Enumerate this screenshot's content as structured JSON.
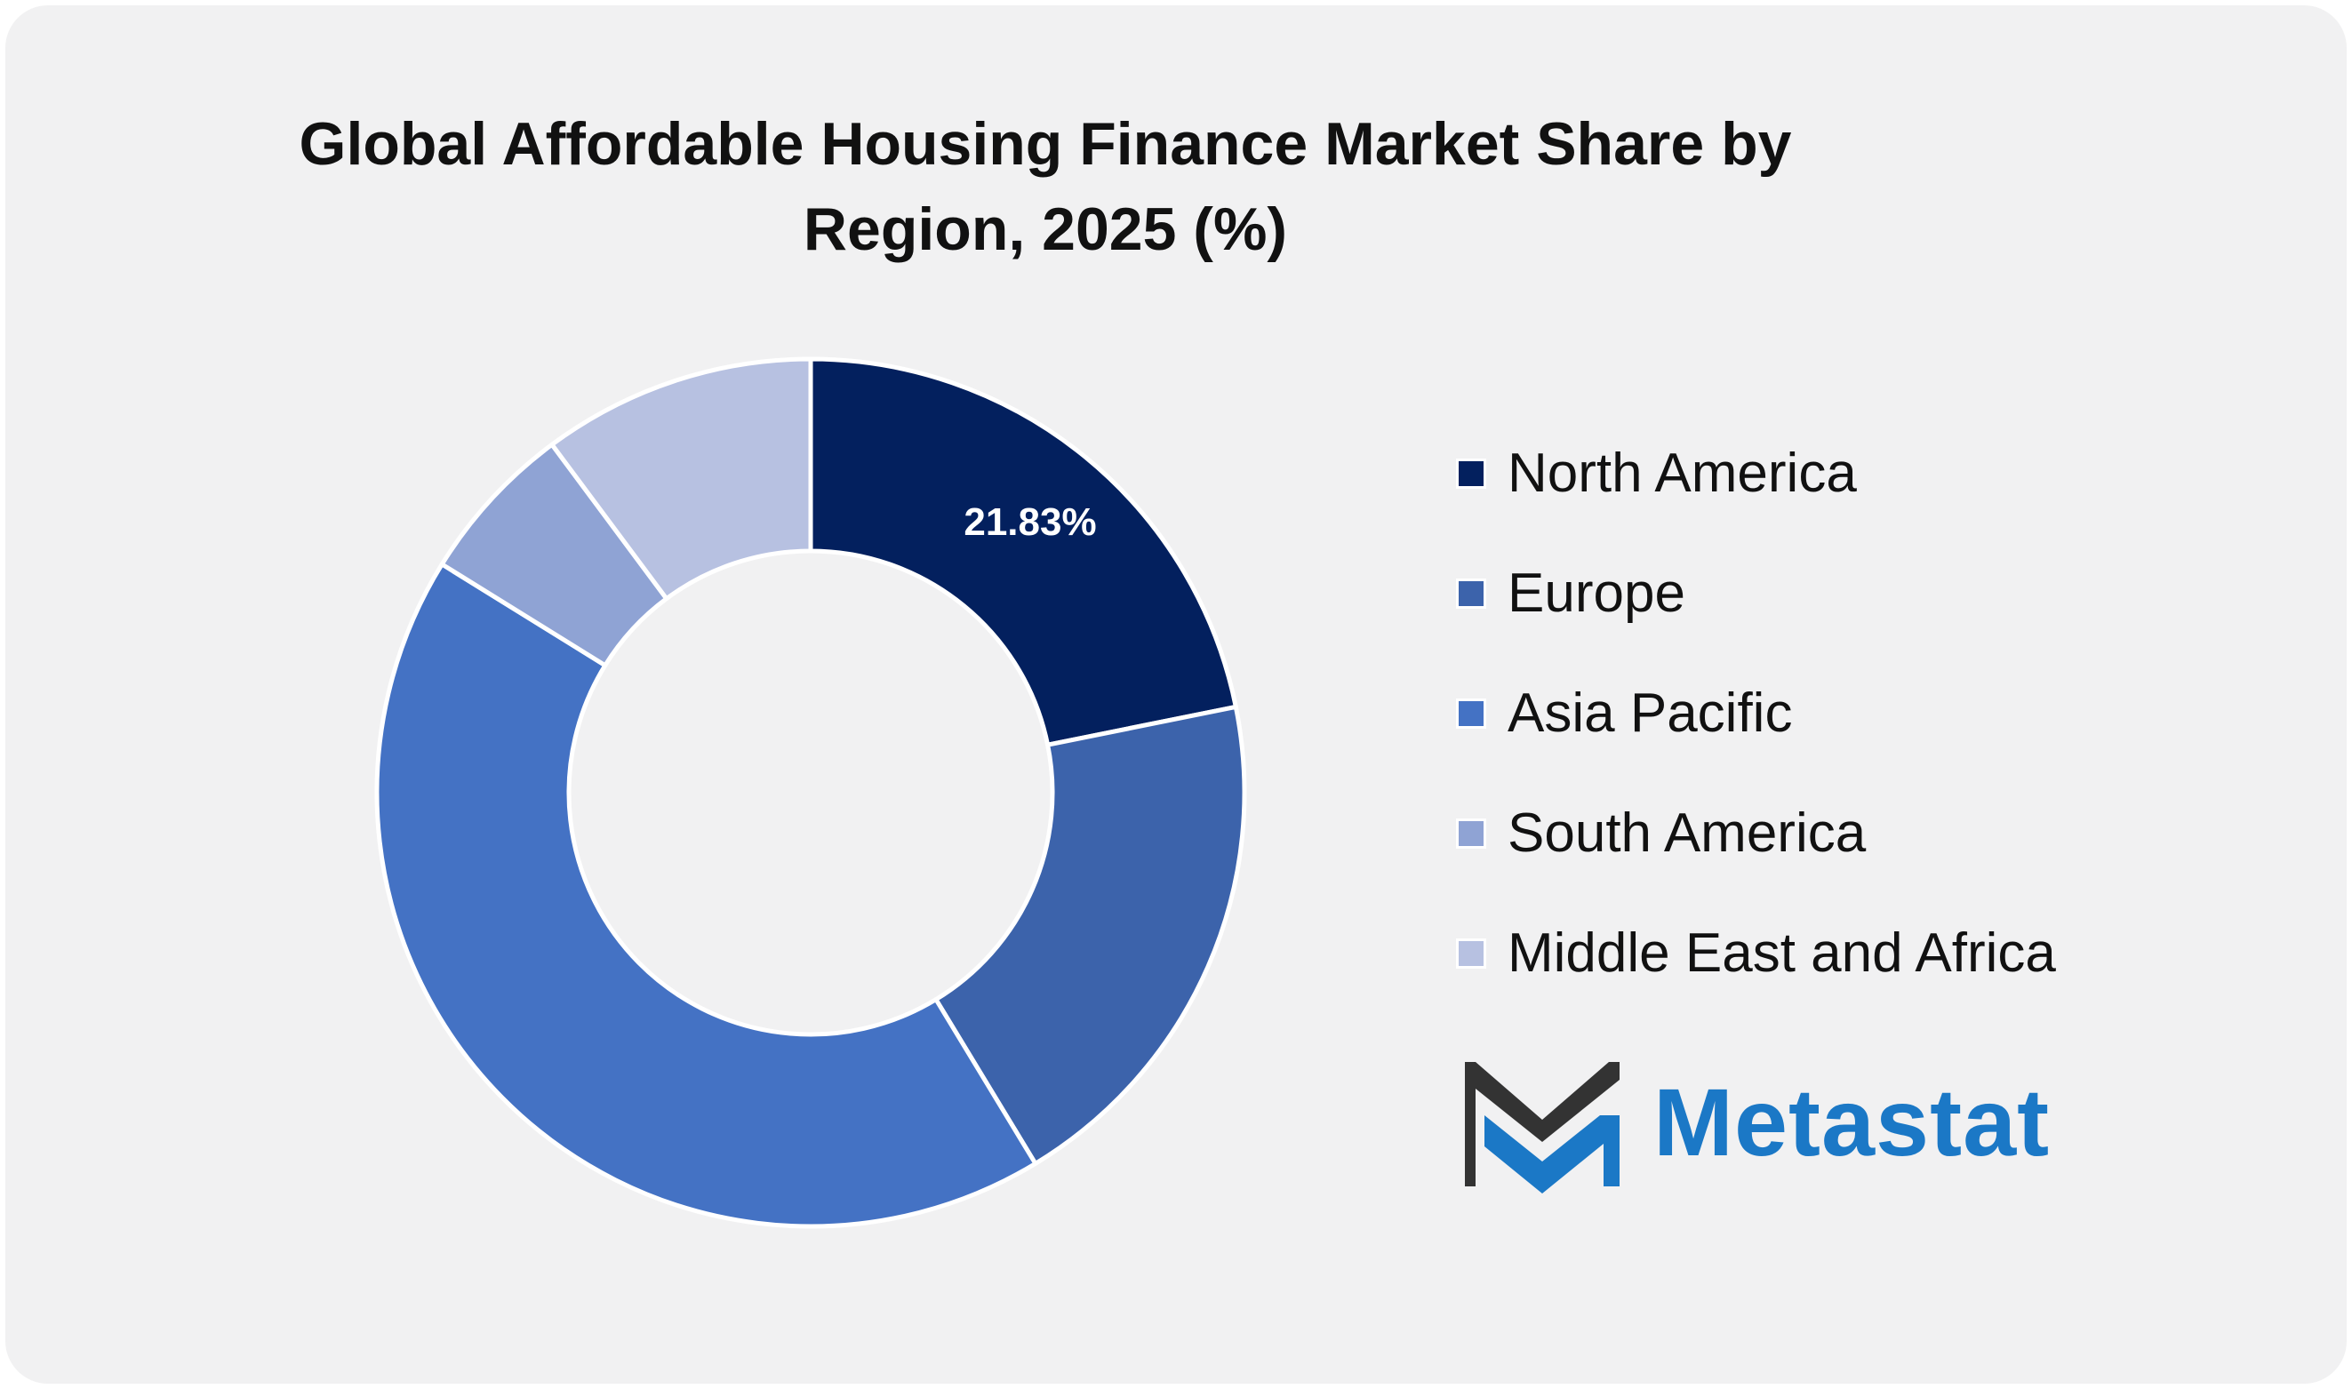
{
  "chart_data": {
    "type": "pie",
    "donut": true,
    "title": "Global Affordable Housing Finance Market Share by Region, 2025 (%)",
    "categories": [
      "North America",
      "Europe",
      "Asia Pacific",
      "South America",
      "Middle East and Africa"
    ],
    "values": [
      21.83,
      19.5,
      42.5,
      6.0,
      10.17
    ],
    "colors": [
      "#03205e",
      "#3c63ab",
      "#4472c4",
      "#8fa3d4",
      "#b7c1e1"
    ],
    "data_labels": [
      "21.83%",
      "",
      "",
      "",
      ""
    ],
    "label_color": "#ffffff",
    "legend_position": "right"
  },
  "logo": {
    "text": "Metastat",
    "text_color": "#1b78c6",
    "mark_dark": "#333333",
    "mark_blue": "#1b78c6"
  },
  "page": {
    "background": "#f1f1f2"
  }
}
